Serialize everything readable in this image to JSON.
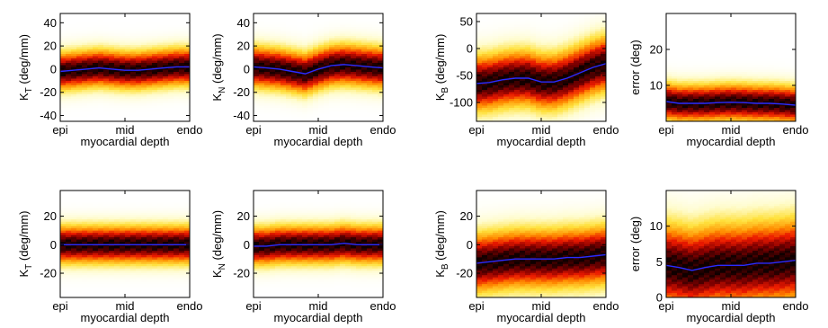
{
  "chart_data": [
    {
      "type": "heatmap",
      "row": 1,
      "col": 1,
      "ylabel_main": "K",
      "ylabel_sub": "T",
      "ylabel_unit": " (deg/mm)",
      "xlabel": "myocardial depth",
      "xticks": [
        "epi",
        "mid",
        "endo"
      ],
      "ylim": [
        -45,
        48
      ],
      "yticks": [
        -40,
        -20,
        0,
        20,
        40
      ],
      "density_spread": 11,
      "median": {
        "x": [
          0,
          0.1,
          0.2,
          0.3,
          0.4,
          0.5,
          0.6,
          0.7,
          0.8,
          0.9,
          1.0
        ],
        "y": [
          -2,
          -1,
          0,
          1,
          0,
          -1,
          -1,
          0,
          1,
          2,
          2
        ]
      }
    },
    {
      "type": "heatmap",
      "row": 1,
      "col": 2,
      "ylabel_main": "K",
      "ylabel_sub": "N",
      "ylabel_unit": " (deg/mm)",
      "xlabel": "myocardial depth",
      "xticks": [
        "epi",
        "mid",
        "endo"
      ],
      "ylim": [
        -45,
        48
      ],
      "yticks": [
        -40,
        -20,
        0,
        20,
        40
      ],
      "density_spread": 12,
      "median": {
        "x": [
          0,
          0.1,
          0.2,
          0.3,
          0.4,
          0.5,
          0.6,
          0.7,
          0.8,
          0.9,
          1.0
        ],
        "y": [
          2,
          1,
          0,
          -2,
          -4,
          0,
          3,
          4,
          3,
          2,
          1
        ]
      }
    },
    {
      "type": "heatmap",
      "row": 1,
      "col": 3,
      "ylabel_main": "K",
      "ylabel_sub": "B",
      "ylabel_unit": " (deg/mm)",
      "xlabel": "myocardial depth",
      "xticks": [
        "epi",
        "mid",
        "endo"
      ],
      "ylim": [
        -135,
        65
      ],
      "yticks": [
        -100,
        -50,
        0,
        50
      ],
      "density_spread": 35,
      "median": {
        "x": [
          0,
          0.1,
          0.2,
          0.3,
          0.4,
          0.5,
          0.6,
          0.7,
          0.8,
          0.9,
          1.0
        ],
        "y": [
          -65,
          -63,
          -58,
          -55,
          -55,
          -62,
          -62,
          -55,
          -45,
          -35,
          -28
        ]
      }
    },
    {
      "type": "heatmap",
      "row": 1,
      "col": 4,
      "ylabel_main": "error (deg)",
      "ylabel_sub": "",
      "ylabel_unit": "",
      "xlabel": "myocardial depth",
      "xticks": [
        "epi",
        "mid",
        "endo"
      ],
      "ylim": [
        0,
        30
      ],
      "yticks": [
        10,
        20
      ],
      "density_spread": 3.5,
      "median": {
        "x": [
          0,
          0.1,
          0.2,
          0.3,
          0.4,
          0.5,
          0.6,
          0.7,
          0.8,
          0.9,
          1.0
        ],
        "y": [
          5.5,
          5,
          5,
          5,
          5.2,
          5.3,
          5.2,
          5,
          5,
          4.8,
          4.5
        ]
      }
    },
    {
      "type": "heatmap",
      "row": 2,
      "col": 1,
      "ylabel_main": "K",
      "ylabel_sub": "T",
      "ylabel_unit": " (deg/mm)",
      "xlabel": "myocardial depth",
      "xticks": [
        "epi",
        "mid",
        "endo"
      ],
      "ylim": [
        -37,
        38
      ],
      "yticks": [
        -20,
        0,
        20
      ],
      "density_spread": 9,
      "median": {
        "x": [
          0,
          0.1,
          0.2,
          0.3,
          0.4,
          0.5,
          0.6,
          0.7,
          0.8,
          0.9,
          1.0
        ],
        "y": [
          0,
          0,
          0,
          0,
          0,
          0,
          0,
          0,
          0,
          0,
          0
        ]
      }
    },
    {
      "type": "heatmap",
      "row": 2,
      "col": 2,
      "ylabel_main": "K",
      "ylabel_sub": "N",
      "ylabel_unit": " (deg/mm)",
      "xlabel": "myocardial depth",
      "xticks": [
        "epi",
        "mid",
        "endo"
      ],
      "ylim": [
        -37,
        38
      ],
      "yticks": [
        -20,
        0,
        20
      ],
      "density_spread": 9,
      "median": {
        "x": [
          0,
          0.1,
          0.2,
          0.3,
          0.4,
          0.5,
          0.6,
          0.7,
          0.8,
          0.9,
          1.0
        ],
        "y": [
          -1,
          -1,
          0,
          0,
          0,
          0,
          0,
          1,
          0,
          0,
          0
        ]
      }
    },
    {
      "type": "heatmap",
      "row": 2,
      "col": 3,
      "ylabel_main": "K",
      "ylabel_sub": "B",
      "ylabel_unit": " (deg/mm)",
      "xlabel": "myocardial depth",
      "xticks": [
        "epi",
        "mid",
        "endo"
      ],
      "ylim": [
        -37,
        38
      ],
      "yticks": [
        -20,
        0,
        20
      ],
      "density_spread": 14,
      "median": {
        "x": [
          0,
          0.1,
          0.2,
          0.3,
          0.4,
          0.5,
          0.6,
          0.7,
          0.8,
          0.9,
          1.0
        ],
        "y": [
          -13,
          -12,
          -11,
          -10,
          -10,
          -10,
          -10,
          -9,
          -9,
          -8,
          -7
        ]
      }
    },
    {
      "type": "heatmap",
      "row": 2,
      "col": 4,
      "ylabel_main": "error (deg)",
      "ylabel_sub": "",
      "ylabel_unit": "",
      "xlabel": "myocardial depth",
      "xticks": [
        "epi",
        "mid",
        "endo"
      ],
      "ylim": [
        0,
        15
      ],
      "yticks": [
        0,
        5,
        10
      ],
      "density_spread": 4,
      "median": {
        "x": [
          0,
          0.1,
          0.2,
          0.3,
          0.4,
          0.5,
          0.6,
          0.7,
          0.8,
          0.9,
          1.0
        ],
        "y": [
          4.5,
          4.2,
          3.8,
          4.2,
          4.5,
          4.5,
          4.5,
          4.8,
          4.8,
          5,
          5.2
        ]
      }
    }
  ]
}
